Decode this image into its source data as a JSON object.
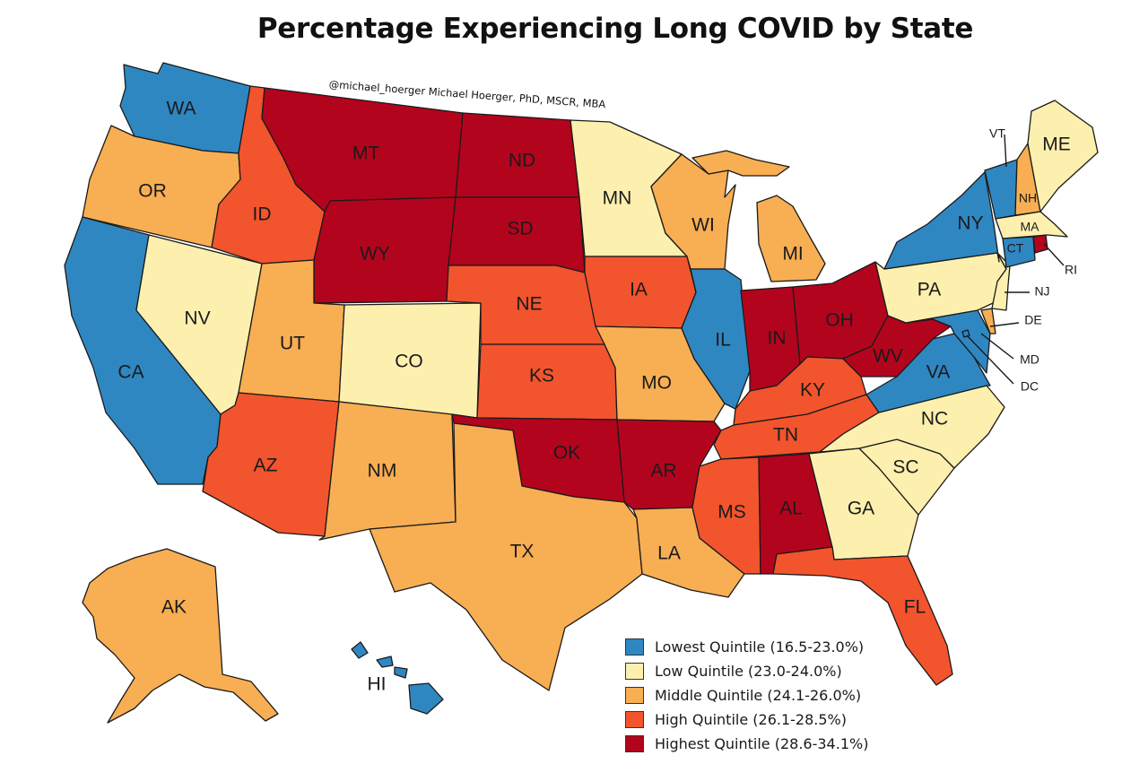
{
  "title": "Percentage Experiencing Long COVID by State",
  "credit": "@michael_hoerger  Michael Hoerger, PhD, MSCR, MBA",
  "colors": {
    "lowest": "#2f87c2",
    "low": "#fdf0ae",
    "middle": "#f8ae52",
    "high": "#f2542d",
    "highest": "#b3041e"
  },
  "legend": [
    {
      "key": "lowest",
      "label": "Lowest Quintile (16.5-23.0%)"
    },
    {
      "key": "low",
      "label": "Low Quintile (23.0-24.0%)"
    },
    {
      "key": "middle",
      "label": "Middle Quintile (24.1-26.0%)"
    },
    {
      "key": "high",
      "label": "High Quintile (26.1-28.5%)"
    },
    {
      "key": "highest",
      "label": "Highest Quintile (28.6-34.1%)"
    }
  ],
  "states": [
    {
      "abbr": "WA",
      "quintile": "lowest"
    },
    {
      "abbr": "OR",
      "quintile": "middle"
    },
    {
      "abbr": "CA",
      "quintile": "lowest"
    },
    {
      "abbr": "NV",
      "quintile": "low"
    },
    {
      "abbr": "ID",
      "quintile": "high"
    },
    {
      "abbr": "MT",
      "quintile": "highest"
    },
    {
      "abbr": "WY",
      "quintile": "highest"
    },
    {
      "abbr": "UT",
      "quintile": "middle"
    },
    {
      "abbr": "AZ",
      "quintile": "high"
    },
    {
      "abbr": "CO",
      "quintile": "low"
    },
    {
      "abbr": "NM",
      "quintile": "middle"
    },
    {
      "abbr": "ND",
      "quintile": "highest"
    },
    {
      "abbr": "SD",
      "quintile": "highest"
    },
    {
      "abbr": "NE",
      "quintile": "high"
    },
    {
      "abbr": "KS",
      "quintile": "high"
    },
    {
      "abbr": "OK",
      "quintile": "highest"
    },
    {
      "abbr": "TX",
      "quintile": "middle"
    },
    {
      "abbr": "MN",
      "quintile": "low"
    },
    {
      "abbr": "IA",
      "quintile": "high"
    },
    {
      "abbr": "MO",
      "quintile": "middle"
    },
    {
      "abbr": "AR",
      "quintile": "highest"
    },
    {
      "abbr": "LA",
      "quintile": "middle"
    },
    {
      "abbr": "WI",
      "quintile": "middle"
    },
    {
      "abbr": "IL",
      "quintile": "lowest"
    },
    {
      "abbr": "MI",
      "quintile": "middle"
    },
    {
      "abbr": "IN",
      "quintile": "highest"
    },
    {
      "abbr": "OH",
      "quintile": "highest"
    },
    {
      "abbr": "KY",
      "quintile": "high"
    },
    {
      "abbr": "TN",
      "quintile": "high"
    },
    {
      "abbr": "MS",
      "quintile": "high"
    },
    {
      "abbr": "AL",
      "quintile": "highest"
    },
    {
      "abbr": "GA",
      "quintile": "low"
    },
    {
      "abbr": "FL",
      "quintile": "high"
    },
    {
      "abbr": "SC",
      "quintile": "low"
    },
    {
      "abbr": "NC",
      "quintile": "low"
    },
    {
      "abbr": "VA",
      "quintile": "lowest"
    },
    {
      "abbr": "WV",
      "quintile": "highest"
    },
    {
      "abbr": "PA",
      "quintile": "low"
    },
    {
      "abbr": "NY",
      "quintile": "lowest"
    },
    {
      "abbr": "VT",
      "quintile": "lowest"
    },
    {
      "abbr": "NH",
      "quintile": "middle"
    },
    {
      "abbr": "ME",
      "quintile": "low"
    },
    {
      "abbr": "MA",
      "quintile": "low"
    },
    {
      "abbr": "CT",
      "quintile": "lowest"
    },
    {
      "abbr": "RI",
      "quintile": "highest"
    },
    {
      "abbr": "NJ",
      "quintile": "low"
    },
    {
      "abbr": "DE",
      "quintile": "middle"
    },
    {
      "abbr": "MD",
      "quintile": "lowest"
    },
    {
      "abbr": "DC",
      "quintile": "lowest"
    },
    {
      "abbr": "AK",
      "quintile": "middle"
    },
    {
      "abbr": "HI",
      "quintile": "lowest"
    }
  ]
}
